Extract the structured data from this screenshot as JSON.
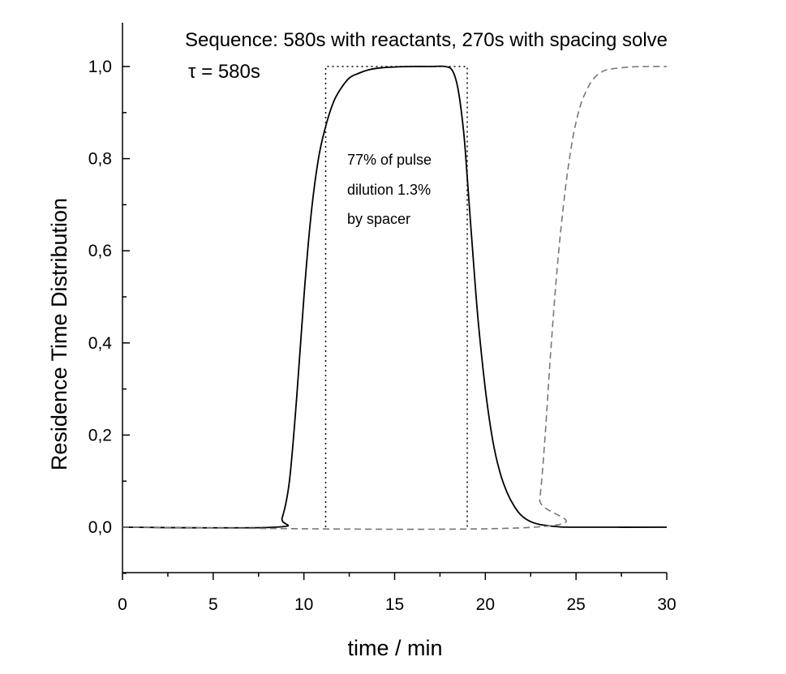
{
  "chart_data": {
    "type": "line",
    "title": "Sequence: 580s with reactants, 270s with spacing solve",
    "subtitle": "τ = 580s",
    "xlabel": "time / min",
    "ylabel": "Residence Time Distribution",
    "xlim": [
      0,
      30
    ],
    "ylim": [
      -0.1,
      1.1
    ],
    "x_ticks": [
      "0",
      "5",
      "10",
      "15",
      "20",
      "25",
      "30"
    ],
    "y_ticks": [
      "0,0",
      "0,2",
      "0,4",
      "0,6",
      "0,8",
      "1,0"
    ],
    "annotation": [
      "77% of pulse",
      "dilution 1.3%",
      "by spacer"
    ],
    "grid": false,
    "series": [
      {
        "style": "solid",
        "x": [
          0,
          8.4,
          8.8,
          9.2,
          9.6,
          10.0,
          10.4,
          10.8,
          11.2,
          11.6,
          12.0,
          12.5,
          13.0,
          13.5,
          14.0,
          15.0,
          16.0,
          17.0,
          17.8,
          18.2,
          18.5,
          18.8,
          19.0,
          19.3,
          19.6,
          20.0,
          20.4,
          20.8,
          21.2,
          21.6,
          22.0,
          22.5,
          23.0,
          23.5,
          24.0,
          25.0,
          30.0
        ],
        "y": [
          0,
          0,
          0.02,
          0.1,
          0.28,
          0.5,
          0.68,
          0.8,
          0.87,
          0.92,
          0.95,
          0.975,
          0.985,
          0.992,
          0.996,
          0.999,
          1.0,
          1.0,
          1.0,
          0.99,
          0.95,
          0.86,
          0.76,
          0.6,
          0.45,
          0.3,
          0.19,
          0.12,
          0.075,
          0.045,
          0.025,
          0.012,
          0.006,
          0.003,
          0.001,
          0,
          0
        ]
      },
      {
        "style": "dashed",
        "x": [
          0,
          22.7,
          23.0,
          23.3,
          23.6,
          24.0,
          24.4,
          24.8,
          25.2,
          25.6,
          26.0,
          26.5,
          27.0,
          28.0,
          29.0,
          30.0
        ],
        "y": [
          0,
          0,
          0.06,
          0.2,
          0.38,
          0.58,
          0.73,
          0.84,
          0.91,
          0.95,
          0.975,
          0.99,
          0.995,
          0.999,
          1.0,
          1.0
        ]
      },
      {
        "style": "dotted",
        "x": [
          11.2,
          11.2,
          19.0,
          19.0
        ],
        "y": [
          0,
          1.0,
          1.0,
          0
        ]
      }
    ]
  }
}
